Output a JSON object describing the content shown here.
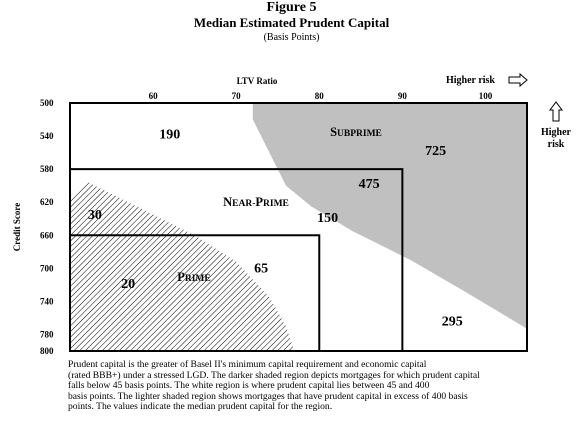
{
  "figure": {
    "number": "Figure 5",
    "title": "Median Estimated Prudent Capital",
    "subtitle": "(Basis Points)"
  },
  "chart_data": {
    "type": "heatmap",
    "x": {
      "label": "LTV Ratio",
      "range": [
        50,
        105
      ],
      "ticks": [
        60,
        70,
        80,
        90,
        100
      ]
    },
    "y": {
      "label": "Credit Score",
      "range": [
        500,
        800
      ],
      "ticks": [
        500,
        540,
        580,
        620,
        660,
        700,
        740,
        780,
        800
      ],
      "inverted": true
    },
    "risk_indicators": {
      "horizontal": "Higher risk",
      "vertical": "Higher risk"
    },
    "regions": [
      {
        "name": "Prime",
        "ltv_max": 80,
        "score_min": 660,
        "label": "PRIME"
      },
      {
        "name": "Near-Prime",
        "ltv_max": 90,
        "score_min": 580,
        "label": "NEAR-PRIME"
      },
      {
        "name": "Subprime",
        "label": "SUBPRIME"
      }
    ],
    "values": [
      {
        "value": 190,
        "ltv": 62,
        "score": 537
      },
      {
        "value": 725,
        "ltv": 94,
        "score": 557
      },
      {
        "value": 475,
        "ltv": 86,
        "score": 597
      },
      {
        "value": 30,
        "ltv": 53,
        "score": 634
      },
      {
        "value": 150,
        "ltv": 81,
        "score": 638
      },
      {
        "value": 65,
        "ltv": 73,
        "score": 699
      },
      {
        "value": 20,
        "ltv": 57,
        "score": 718
      },
      {
        "value": 295,
        "ltv": 96,
        "score": 763
      }
    ],
    "shaded_regions": [
      {
        "kind": "dark",
        "meaning": "prudent capital below 45 basis points",
        "boundary": [
          [
            50,
            613
          ],
          [
            52,
            595
          ],
          [
            58,
            625
          ],
          [
            65,
            660
          ],
          [
            70,
            692
          ],
          [
            74,
            735
          ],
          [
            76,
            770
          ],
          [
            77,
            800
          ],
          [
            50,
            800
          ]
        ]
      },
      {
        "kind": "light",
        "meaning": "prudent capital in excess of 400 basis points",
        "boundary": [
          [
            72,
            500
          ],
          [
            105,
            500
          ],
          [
            105,
            773
          ],
          [
            102,
            755
          ],
          [
            97,
            725
          ],
          [
            91,
            690
          ],
          [
            84,
            655
          ],
          [
            79,
            625
          ],
          [
            76,
            600
          ],
          [
            74,
            560
          ],
          [
            72,
            520
          ]
        ]
      }
    ],
    "colors": {
      "light_shade": "#c0c0c0",
      "dark_hatch": "#000000"
    }
  },
  "labels": {
    "prime": "PRIME",
    "near_prime": "NEAR-PRIME",
    "subprime": "SUBPRIME"
  },
  "caption": "Prudent capital is the greater of Basel II's minimum capital requirement and economic capital\n(rated BBB+) under a stressed LGD. The darker shaded region depicts mortgages for which prudent capital\nfalls below 45 basis points. The white region is where prudent capital lies between 45 and 400\nbasis points. The lighter shaded region shows mortgages that have prudent capital in excess of 400 basis\npoints. The values indicate the median prudent capital for the region."
}
